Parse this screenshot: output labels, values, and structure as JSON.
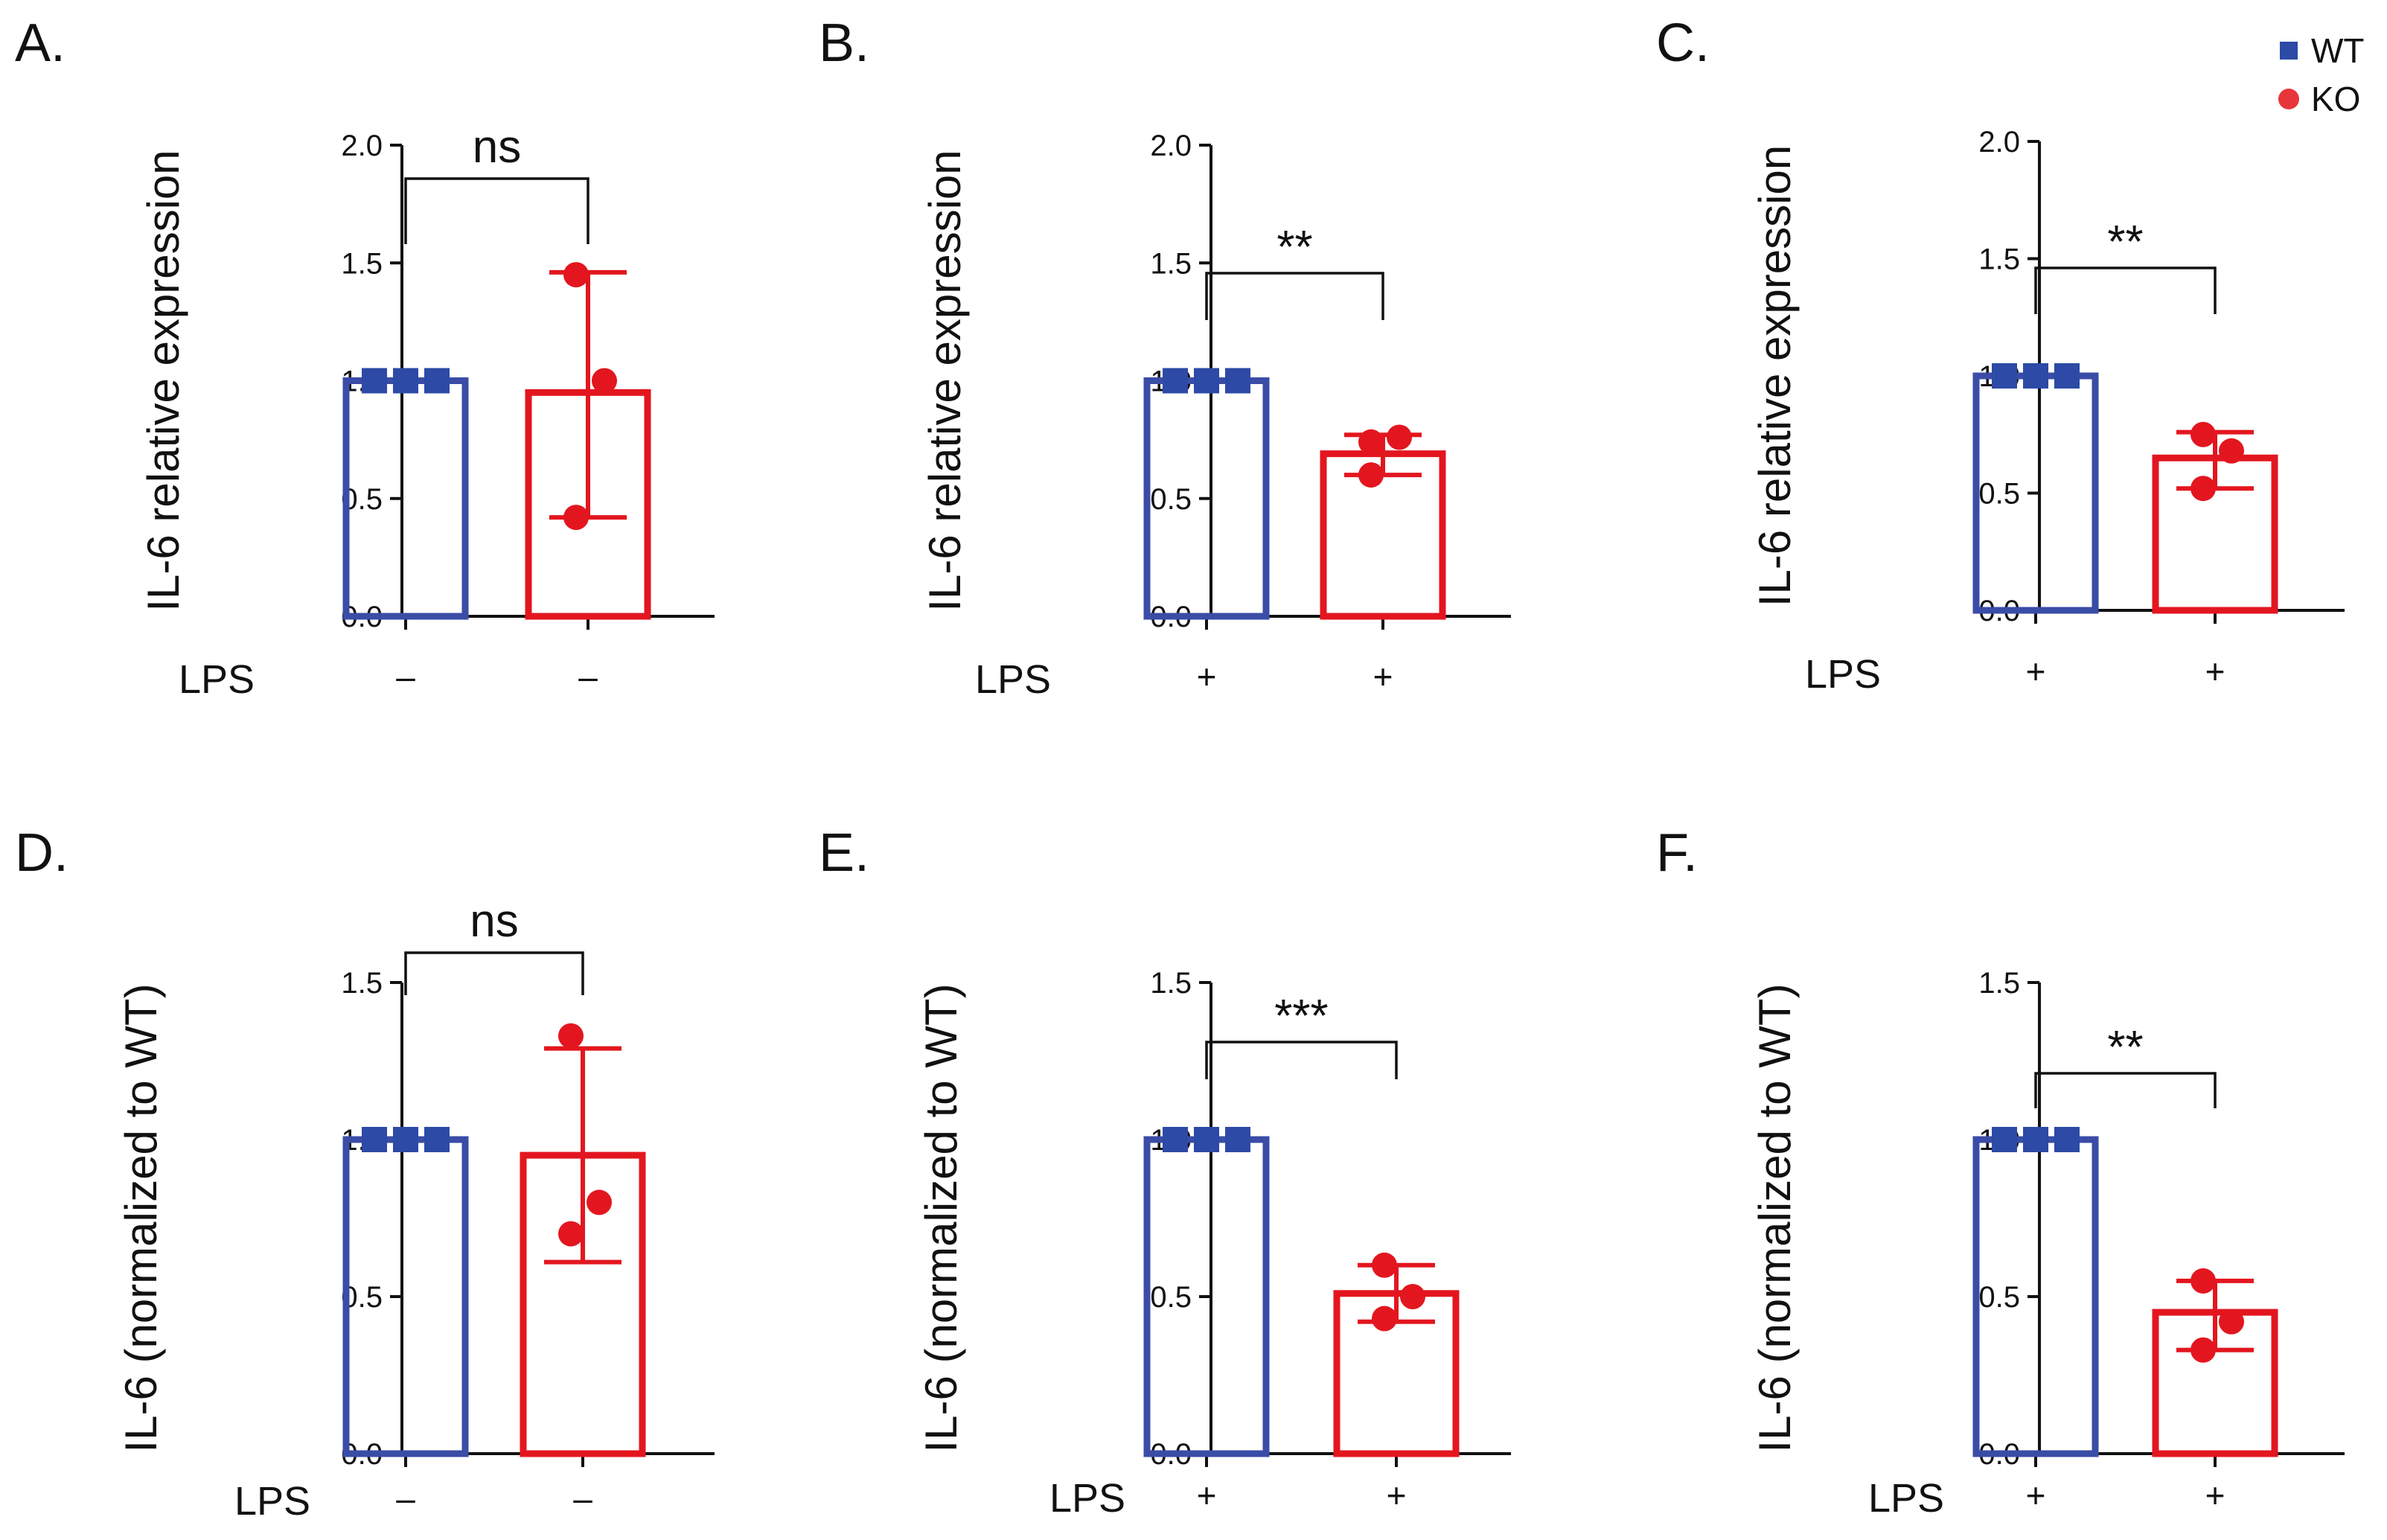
{
  "colors": {
    "wt": "#3a4ca6",
    "ko": "#e3161f",
    "wt_marker": "#2c4aa6",
    "ko_marker": "#e8353b",
    "axis": "#111111"
  },
  "legend": {
    "items": [
      {
        "label": "WT",
        "marker": "square"
      },
      {
        "label": "KO",
        "marker": "circle"
      }
    ]
  },
  "chart_data": [
    {
      "panel": "A.",
      "type": "bar",
      "ylabel": "IL-6 relative expression",
      "ylim": [
        0,
        2.0
      ],
      "yticks": [
        "0.0",
        "0.5",
        "1.0",
        "1.5",
        "2.0"
      ],
      "row_label": "LPS",
      "categories": [
        "WT",
        "KO"
      ],
      "lps": [
        "–",
        "–"
      ],
      "series": [
        {
          "name": "WT",
          "mean": 1.0,
          "points": [
            1.0,
            1.0,
            1.0
          ],
          "err": [
            1.0,
            1.0
          ]
        },
        {
          "name": "KO",
          "mean": 0.95,
          "points": [
            1.45,
            1.0,
            0.42
          ],
          "err": [
            0.42,
            1.46
          ]
        }
      ],
      "significance": "ns"
    },
    {
      "panel": "B.",
      "type": "bar",
      "ylabel": "IL-6 relative expression",
      "ylim": [
        0,
        2.0
      ],
      "yticks": [
        "0.0",
        "0.5",
        "1.0",
        "1.5",
        "2.0"
      ],
      "row_label": "LPS",
      "categories": [
        "WT",
        "KO"
      ],
      "lps": [
        "+",
        "+"
      ],
      "series": [
        {
          "name": "WT",
          "mean": 1.0,
          "points": [
            1.0,
            1.0,
            1.0
          ],
          "err": [
            1.0,
            1.0
          ]
        },
        {
          "name": "KO",
          "mean": 0.69,
          "points": [
            0.74,
            0.76,
            0.6
          ],
          "err": [
            0.6,
            0.77
          ]
        }
      ],
      "significance": "**"
    },
    {
      "panel": "C.",
      "type": "bar",
      "ylabel": "IL-6 relative expression",
      "ylim": [
        0,
        2.0
      ],
      "yticks": [
        "0.0",
        "0.5",
        "1.0",
        "1.5",
        "2.0"
      ],
      "row_label": "LPS",
      "categories": [
        "WT",
        "KO"
      ],
      "lps": [
        "+",
        "+"
      ],
      "series": [
        {
          "name": "WT",
          "mean": 1.0,
          "points": [
            1.0,
            1.0,
            1.0
          ],
          "err": [
            1.0,
            1.0
          ]
        },
        {
          "name": "KO",
          "mean": 0.65,
          "points": [
            0.75,
            0.68,
            0.52
          ],
          "err": [
            0.52,
            0.76
          ]
        }
      ],
      "significance": "**"
    },
    {
      "panel": "D.",
      "type": "bar",
      "ylabel": "IL-6 (normalized to WT)",
      "ylim": [
        0,
        1.5
      ],
      "yticks": [
        "0.0",
        "0.5",
        "1.0",
        "1.5"
      ],
      "row_label": "LPS",
      "categories": [
        "WT",
        "KO"
      ],
      "lps": [
        "–",
        "–"
      ],
      "series": [
        {
          "name": "WT",
          "mean": 1.0,
          "points": [
            1.0,
            1.0,
            1.0
          ],
          "err": [
            1.0,
            1.0
          ]
        },
        {
          "name": "KO",
          "mean": 0.95,
          "points": [
            1.33,
            0.8,
            0.7
          ],
          "err": [
            0.61,
            1.29
          ]
        }
      ],
      "significance": "ns"
    },
    {
      "panel": "E.",
      "type": "bar",
      "ylabel": "IL-6 (normalized to WT)",
      "ylim": [
        0,
        1.5
      ],
      "yticks": [
        "0.0",
        "0.5",
        "1.0",
        "1.5"
      ],
      "row_label": "LPS",
      "categories": [
        "WT",
        "KO"
      ],
      "lps": [
        "+",
        "+"
      ],
      "series": [
        {
          "name": "WT",
          "mean": 1.0,
          "points": [
            1.0,
            1.0,
            1.0
          ],
          "err": [
            1.0,
            1.0
          ]
        },
        {
          "name": "KO",
          "mean": 0.51,
          "points": [
            0.6,
            0.5,
            0.43
          ],
          "err": [
            0.42,
            0.6
          ]
        }
      ],
      "significance": "***"
    },
    {
      "panel": "F.",
      "type": "bar",
      "ylabel": "IL-6 (normalized to WT)",
      "ylim": [
        0,
        1.5
      ],
      "yticks": [
        "0.0",
        "0.5",
        "1.0",
        "1.5"
      ],
      "row_label": "LPS",
      "categories": [
        "WT",
        "KO"
      ],
      "lps": [
        "+",
        "+"
      ],
      "series": [
        {
          "name": "WT",
          "mean": 1.0,
          "points": [
            1.0,
            1.0,
            1.0
          ],
          "err": [
            1.0,
            1.0
          ]
        },
        {
          "name": "KO",
          "mean": 0.45,
          "points": [
            0.55,
            0.42,
            0.33
          ],
          "err": [
            0.33,
            0.55
          ]
        }
      ],
      "significance": "**"
    }
  ]
}
